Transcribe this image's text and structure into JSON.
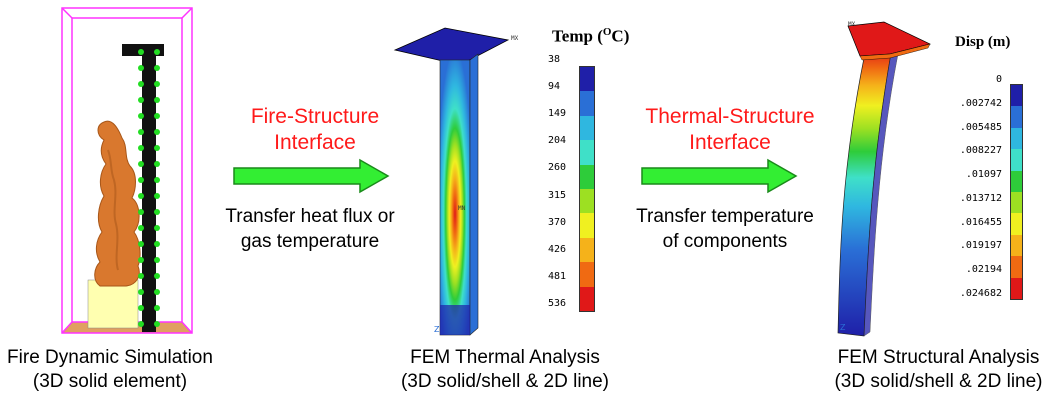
{
  "panels": {
    "fds": {
      "caption_line1": "Fire Dynamic Simulation",
      "caption_line2": "(3D solid element)"
    },
    "thermal": {
      "caption_line1": "FEM Thermal Analysis",
      "caption_line2": "(3D solid/shell & 2D line)",
      "legend_title": "Temp (°C)",
      "legend_values": [
        "38",
        "94",
        "149",
        "204",
        "260",
        "315",
        "370",
        "426",
        "481",
        "536"
      ],
      "legend_colors": [
        "#1f1fa8",
        "#2a6fd6",
        "#2fb7e0",
        "#3fe0c8",
        "#2ecc3a",
        "#9de022",
        "#f0f020",
        "#f5b21a",
        "#f06a12",
        "#e01818"
      ],
      "mx_label": "MX",
      "mn_label": "MN"
    },
    "structural": {
      "caption_line1": "FEM Structural Analysis",
      "caption_line2": "(3D solid/shell & 2D line)",
      "legend_title": "Disp (m)",
      "legend_values": [
        "0",
        ".002742",
        ".005485",
        ".008227",
        ".01097",
        ".013712",
        ".016455",
        ".019197",
        ".02194",
        ".024682"
      ],
      "legend_colors": [
        "#1f1fa8",
        "#2a6fd6",
        "#2fb7e0",
        "#3fe0c8",
        "#2ecc3a",
        "#9de022",
        "#f0f020",
        "#f5b21a",
        "#f06a12",
        "#e01818"
      ],
      "mx_label": "MX"
    }
  },
  "interfaces": {
    "fire_structure": {
      "title_line1": "Fire-Structure",
      "title_line2": "Interface",
      "desc_line1": "Transfer heat flux or",
      "desc_line2": "gas temperature"
    },
    "thermal_structure": {
      "title_line1": "Thermal-Structure",
      "title_line2": "Interface",
      "desc_line1": "Transfer temperature",
      "desc_line2": "of components"
    }
  },
  "colors": {
    "interface_text": "#ff1a1a",
    "arrow_fill": "#33ee33",
    "arrow_stroke": "#1a8a1a",
    "fds_frame": "#ff33ff",
    "fire": "#d9782e",
    "base_block": "#ffffb0",
    "floor": "#e0a060"
  }
}
